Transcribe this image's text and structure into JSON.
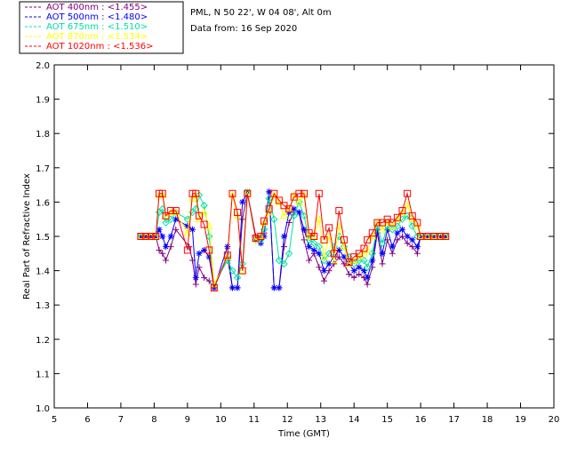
{
  "chart_data": {
    "type": "line",
    "title": "",
    "info_lines": [
      "PML, N 50 22', W 04 08', Alt 0m",
      "Data from: 16 Sep 2020"
    ],
    "xlabel": "Time (GMT)",
    "ylabel": "Real Part of Refractive Index",
    "xlim": [
      5,
      20
    ],
    "ylim": [
      1.0,
      2.0
    ],
    "xticks": [
      "5",
      "6",
      "7",
      "8",
      "9",
      "10",
      "11",
      "12",
      "13",
      "14",
      "15",
      "16",
      "17",
      "18",
      "19",
      "20"
    ],
    "yticks": [
      "1.0",
      "1.1",
      "1.2",
      "1.3",
      "1.4",
      "1.5",
      "1.6",
      "1.7",
      "1.8",
      "1.9",
      "2.0"
    ],
    "legend_position": "top-left-outside",
    "series": [
      {
        "name": "AOT  400nm : <1.455>",
        "color": "#800080",
        "marker": "plus",
        "points": [
          [
            7.6,
            1.5
          ],
          [
            7.75,
            1.5
          ],
          [
            7.9,
            1.5
          ],
          [
            8.05,
            1.5
          ],
          [
            8.15,
            1.46
          ],
          [
            8.25,
            1.45
          ],
          [
            8.35,
            1.43
          ],
          [
            8.5,
            1.47
          ],
          [
            8.65,
            1.52
          ],
          [
            9.05,
            1.47
          ],
          [
            9.15,
            1.43
          ],
          [
            9.25,
            1.36
          ],
          [
            9.35,
            1.41
          ],
          [
            9.5,
            1.38
          ],
          [
            9.65,
            1.37
          ],
          [
            9.8,
            1.35
          ],
          [
            10.2,
            1.44
          ],
          [
            10.35,
            1.35
          ],
          [
            10.5,
            1.35
          ],
          [
            10.65,
            1.55
          ],
          [
            10.8,
            1.63
          ],
          [
            11.05,
            1.5
          ],
          [
            11.2,
            1.5
          ],
          [
            11.3,
            1.51
          ],
          [
            11.45,
            1.63
          ],
          [
            11.6,
            1.35
          ],
          [
            11.75,
            1.35
          ],
          [
            11.9,
            1.47
          ],
          [
            12.05,
            1.54
          ],
          [
            12.2,
            1.57
          ],
          [
            12.35,
            1.57
          ],
          [
            12.5,
            1.49
          ],
          [
            12.65,
            1.43
          ],
          [
            12.8,
            1.45
          ],
          [
            12.95,
            1.41
          ],
          [
            13.1,
            1.37
          ],
          [
            13.25,
            1.4
          ],
          [
            13.4,
            1.42
          ],
          [
            13.55,
            1.44
          ],
          [
            13.7,
            1.42
          ],
          [
            13.85,
            1.39
          ],
          [
            14.0,
            1.38
          ],
          [
            14.15,
            1.39
          ],
          [
            14.3,
            1.38
          ],
          [
            14.4,
            1.36
          ],
          [
            14.55,
            1.41
          ],
          [
            14.7,
            1.51
          ],
          [
            14.85,
            1.42
          ],
          [
            15.0,
            1.49
          ],
          [
            15.15,
            1.45
          ],
          [
            15.3,
            1.49
          ],
          [
            15.45,
            1.5
          ],
          [
            15.6,
            1.48
          ],
          [
            15.75,
            1.47
          ],
          [
            15.9,
            1.45
          ],
          [
            16.0,
            1.5
          ],
          [
            16.2,
            1.5
          ],
          [
            16.4,
            1.5
          ],
          [
            16.6,
            1.5
          ],
          [
            16.75,
            1.5
          ]
        ]
      },
      {
        "name": "AOT  500nm : <1.480>",
        "color": "#0000ff",
        "marker": "asterisk",
        "points": [
          [
            7.6,
            1.5
          ],
          [
            7.75,
            1.5
          ],
          [
            7.9,
            1.5
          ],
          [
            8.05,
            1.5
          ],
          [
            8.15,
            1.52
          ],
          [
            8.25,
            1.5
          ],
          [
            8.35,
            1.47
          ],
          [
            8.5,
            1.5
          ],
          [
            8.65,
            1.55
          ],
          [
            9.0,
            1.53
          ],
          [
            9.15,
            1.52
          ],
          [
            9.25,
            1.38
          ],
          [
            9.35,
            1.45
          ],
          [
            9.5,
            1.46
          ],
          [
            9.65,
            1.44
          ],
          [
            9.8,
            1.35
          ],
          [
            10.2,
            1.47
          ],
          [
            10.35,
            1.35
          ],
          [
            10.5,
            1.35
          ],
          [
            10.65,
            1.6
          ],
          [
            10.8,
            1.63
          ],
          [
            11.05,
            1.49
          ],
          [
            11.2,
            1.48
          ],
          [
            11.3,
            1.5
          ],
          [
            11.45,
            1.63
          ],
          [
            11.6,
            1.35
          ],
          [
            11.75,
            1.35
          ],
          [
            11.9,
            1.5
          ],
          [
            12.05,
            1.57
          ],
          [
            12.2,
            1.58
          ],
          [
            12.35,
            1.57
          ],
          [
            12.5,
            1.52
          ],
          [
            12.65,
            1.47
          ],
          [
            12.8,
            1.46
          ],
          [
            12.95,
            1.45
          ],
          [
            13.1,
            1.4
          ],
          [
            13.25,
            1.42
          ],
          [
            13.4,
            1.44
          ],
          [
            13.55,
            1.46
          ],
          [
            13.7,
            1.44
          ],
          [
            13.85,
            1.42
          ],
          [
            14.0,
            1.4
          ],
          [
            14.15,
            1.41
          ],
          [
            14.3,
            1.4
          ],
          [
            14.4,
            1.38
          ],
          [
            14.55,
            1.43
          ],
          [
            14.7,
            1.52
          ],
          [
            14.85,
            1.45
          ],
          [
            15.0,
            1.52
          ],
          [
            15.15,
            1.47
          ],
          [
            15.3,
            1.51
          ],
          [
            15.45,
            1.52
          ],
          [
            15.6,
            1.5
          ],
          [
            15.75,
            1.49
          ],
          [
            15.9,
            1.47
          ],
          [
            16.0,
            1.5
          ],
          [
            16.2,
            1.5
          ],
          [
            16.4,
            1.5
          ],
          [
            16.6,
            1.5
          ],
          [
            16.75,
            1.5
          ]
        ]
      },
      {
        "name": "AOT  675nm : <1.510>",
        "color": "#00e0a0",
        "marker": "diamond",
        "points": [
          [
            7.6,
            1.5
          ],
          [
            7.75,
            1.5
          ],
          [
            7.9,
            1.5
          ],
          [
            8.05,
            1.5
          ],
          [
            8.15,
            1.57
          ],
          [
            8.25,
            1.58
          ],
          [
            8.35,
            1.54
          ],
          [
            8.5,
            1.55
          ],
          [
            8.65,
            1.57
          ],
          [
            9.0,
            1.55
          ],
          [
            9.15,
            1.57
          ],
          [
            9.25,
            1.58
          ],
          [
            9.35,
            1.62
          ],
          [
            9.5,
            1.59
          ],
          [
            9.65,
            1.5
          ],
          [
            9.8,
            1.36
          ],
          [
            10.2,
            1.43
          ],
          [
            10.35,
            1.4
          ],
          [
            10.5,
            1.38
          ],
          [
            10.65,
            1.42
          ],
          [
            10.8,
            1.63
          ],
          [
            11.05,
            1.49
          ],
          [
            11.2,
            1.49
          ],
          [
            11.3,
            1.52
          ],
          [
            11.45,
            1.61
          ],
          [
            11.6,
            1.55
          ],
          [
            11.75,
            1.43
          ],
          [
            11.9,
            1.42
          ],
          [
            12.05,
            1.45
          ],
          [
            12.2,
            1.56
          ],
          [
            12.35,
            1.6
          ],
          [
            12.5,
            1.56
          ],
          [
            12.65,
            1.49
          ],
          [
            12.8,
            1.48
          ],
          [
            12.95,
            1.47
          ],
          [
            13.1,
            1.43
          ],
          [
            13.25,
            1.45
          ],
          [
            13.4,
            1.47
          ],
          [
            13.55,
            1.5
          ],
          [
            13.7,
            1.47
          ],
          [
            13.85,
            1.44
          ],
          [
            14.0,
            1.42
          ],
          [
            14.15,
            1.43
          ],
          [
            14.3,
            1.43
          ],
          [
            14.4,
            1.41
          ],
          [
            14.55,
            1.45
          ],
          [
            14.7,
            1.53
          ],
          [
            14.85,
            1.48
          ],
          [
            15.0,
            1.53
          ],
          [
            15.15,
            1.52
          ],
          [
            15.3,
            1.53
          ],
          [
            15.45,
            1.55
          ],
          [
            15.6,
            1.56
          ],
          [
            15.75,
            1.53
          ],
          [
            15.9,
            1.5
          ],
          [
            16.0,
            1.5
          ],
          [
            16.2,
            1.5
          ],
          [
            16.4,
            1.5
          ],
          [
            16.6,
            1.5
          ],
          [
            16.75,
            1.5
          ]
        ]
      },
      {
        "name": "AOT  870nm : <1.534>",
        "color": "#ffff00",
        "marker": "triangle",
        "points": [
          [
            7.6,
            1.5
          ],
          [
            7.75,
            1.5
          ],
          [
            7.9,
            1.5
          ],
          [
            8.05,
            1.5
          ],
          [
            8.15,
            1.62
          ],
          [
            8.25,
            1.62
          ],
          [
            8.35,
            1.56
          ],
          [
            8.5,
            1.57
          ],
          [
            8.65,
            1.57
          ],
          [
            9.0,
            1.51
          ],
          [
            9.15,
            1.61
          ],
          [
            9.25,
            1.62
          ],
          [
            9.35,
            1.55
          ],
          [
            9.5,
            1.57
          ],
          [
            9.65,
            1.53
          ],
          [
            9.8,
            1.36
          ],
          [
            10.2,
            1.44
          ],
          [
            10.35,
            1.62
          ],
          [
            10.5,
            1.56
          ],
          [
            10.65,
            1.4
          ],
          [
            10.8,
            1.63
          ],
          [
            11.05,
            1.49
          ],
          [
            11.2,
            1.5
          ],
          [
            11.3,
            1.54
          ],
          [
            11.45,
            1.57
          ],
          [
            11.6,
            1.62
          ],
          [
            11.75,
            1.6
          ],
          [
            11.9,
            1.56
          ],
          [
            12.05,
            1.58
          ],
          [
            12.2,
            1.62
          ],
          [
            12.35,
            1.6
          ],
          [
            12.5,
            1.62
          ],
          [
            12.65,
            1.5
          ],
          [
            12.8,
            1.5
          ],
          [
            12.95,
            1.55
          ],
          [
            13.1,
            1.44
          ],
          [
            13.25,
            1.5
          ],
          [
            13.4,
            1.43
          ],
          [
            13.55,
            1.53
          ],
          [
            13.7,
            1.47
          ],
          [
            13.85,
            1.42
          ],
          [
            14.0,
            1.43
          ],
          [
            14.15,
            1.44
          ],
          [
            14.3,
            1.45
          ],
          [
            14.4,
            1.46
          ],
          [
            14.55,
            1.5
          ],
          [
            14.7,
            1.54
          ],
          [
            14.85,
            1.52
          ],
          [
            15.0,
            1.54
          ],
          [
            15.15,
            1.53
          ],
          [
            15.3,
            1.55
          ],
          [
            15.45,
            1.57
          ],
          [
            15.6,
            1.59
          ],
          [
            15.75,
            1.55
          ],
          [
            15.9,
            1.53
          ],
          [
            16.0,
            1.5
          ],
          [
            16.2,
            1.5
          ],
          [
            16.4,
            1.5
          ],
          [
            16.6,
            1.5
          ],
          [
            16.75,
            1.5
          ]
        ]
      },
      {
        "name": "AOT 1020nm : <1.536>",
        "color": "#ff0000",
        "marker": "square",
        "points": [
          [
            7.6,
            1.5
          ],
          [
            7.75,
            1.5
          ],
          [
            7.9,
            1.5
          ],
          [
            8.05,
            1.5
          ],
          [
            8.15,
            1.625
          ],
          [
            8.25,
            1.625
          ],
          [
            8.35,
            1.56
          ],
          [
            8.5,
            1.575
          ],
          [
            8.65,
            1.575
          ],
          [
            9.0,
            1.46
          ],
          [
            9.15,
            1.625
          ],
          [
            9.25,
            1.625
          ],
          [
            9.35,
            1.56
          ],
          [
            9.5,
            1.535
          ],
          [
            9.65,
            1.46
          ],
          [
            9.8,
            1.35
          ],
          [
            10.2,
            1.445
          ],
          [
            10.35,
            1.625
          ],
          [
            10.5,
            1.57
          ],
          [
            10.65,
            1.4
          ],
          [
            10.8,
            1.625
          ],
          [
            11.05,
            1.495
          ],
          [
            11.2,
            1.5
          ],
          [
            11.3,
            1.545
          ],
          [
            11.45,
            1.58
          ],
          [
            11.6,
            1.625
          ],
          [
            11.75,
            1.605
          ],
          [
            11.9,
            1.59
          ],
          [
            12.05,
            1.58
          ],
          [
            12.2,
            1.615
          ],
          [
            12.35,
            1.625
          ],
          [
            12.5,
            1.625
          ],
          [
            12.65,
            1.51
          ],
          [
            12.8,
            1.5
          ],
          [
            12.95,
            1.625
          ],
          [
            13.1,
            1.49
          ],
          [
            13.25,
            1.525
          ],
          [
            13.4,
            1.45
          ],
          [
            13.55,
            1.575
          ],
          [
            13.7,
            1.49
          ],
          [
            13.85,
            1.425
          ],
          [
            14.0,
            1.44
          ],
          [
            14.15,
            1.45
          ],
          [
            14.3,
            1.465
          ],
          [
            14.4,
            1.49
          ],
          [
            14.55,
            1.51
          ],
          [
            14.7,
            1.54
          ],
          [
            14.85,
            1.54
          ],
          [
            15.0,
            1.55
          ],
          [
            15.15,
            1.54
          ],
          [
            15.3,
            1.555
          ],
          [
            15.45,
            1.575
          ],
          [
            15.6,
            1.625
          ],
          [
            15.75,
            1.56
          ],
          [
            15.9,
            1.54
          ],
          [
            16.0,
            1.5
          ],
          [
            16.2,
            1.5
          ],
          [
            16.4,
            1.5
          ],
          [
            16.6,
            1.5
          ],
          [
            16.75,
            1.5
          ]
        ]
      }
    ]
  }
}
